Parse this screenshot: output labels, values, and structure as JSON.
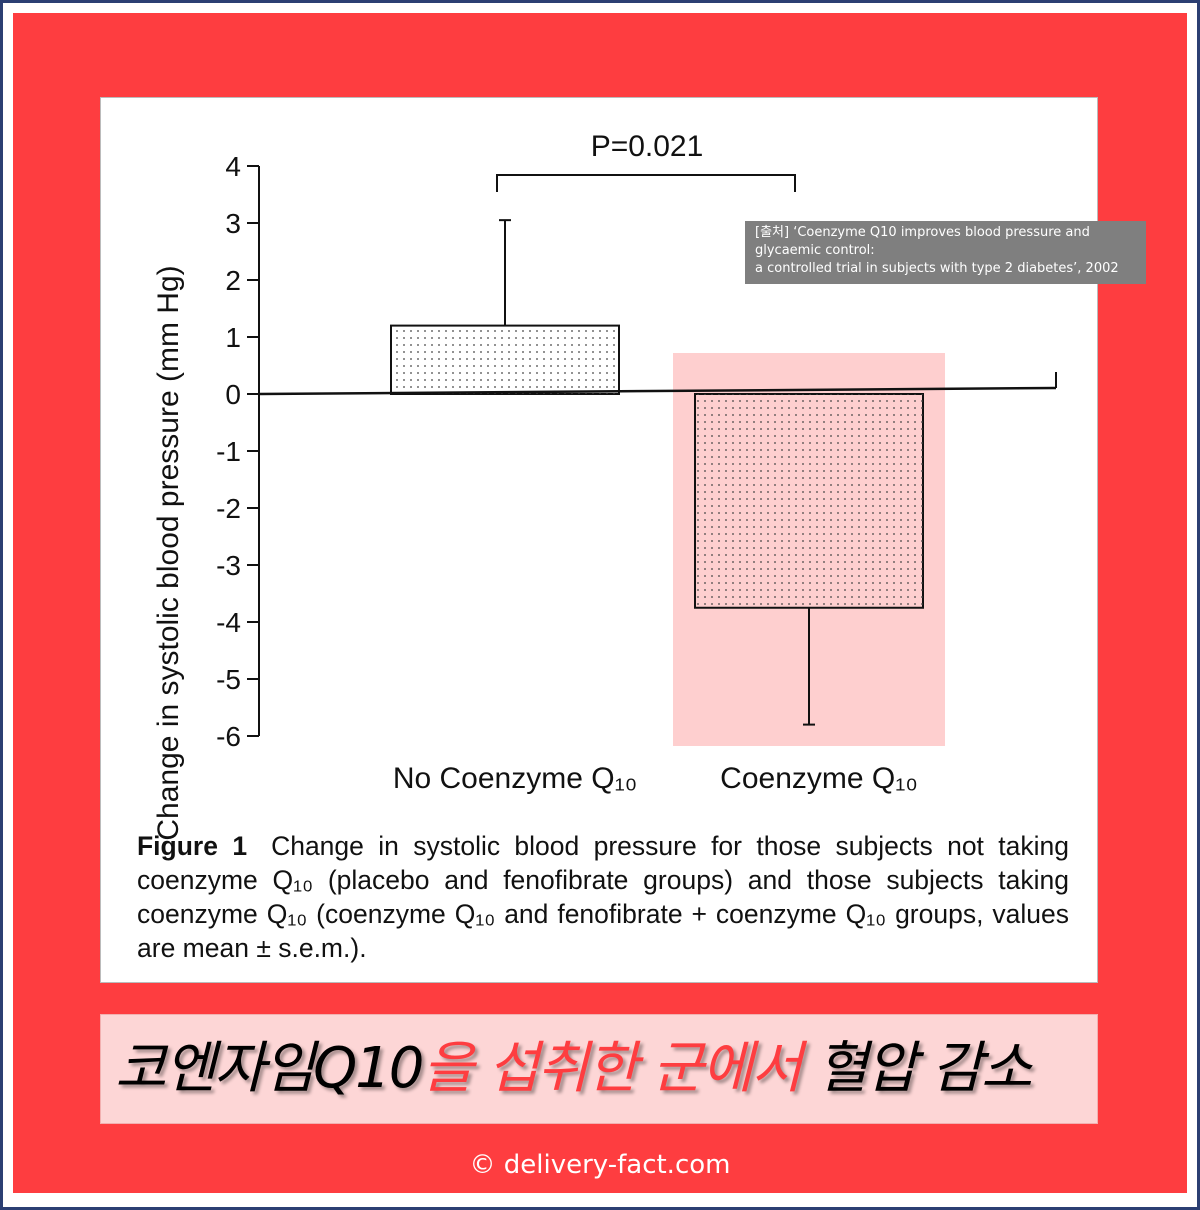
{
  "chart_data": {
    "type": "bar",
    "categories": [
      "No Coenzyme Q₁₀",
      "Coenzyme Q₁₀"
    ],
    "values": [
      1.2,
      -3.75
    ],
    "error_sem": [
      1.85,
      2.05
    ],
    "ylabel": "Change in systolic blood pressure (mm Hg)",
    "ylim": [
      -6,
      4
    ],
    "yticks": [
      4,
      3,
      2,
      1,
      0,
      -1,
      -2,
      -3,
      -4,
      -5,
      -6
    ],
    "annotation": "P=0.021",
    "highlighted_category": "Coenzyme Q₁₀",
    "grid": false,
    "colors": {
      "bar": "#ffffff",
      "highlight": "#fecfcf",
      "dots": "#444444"
    }
  },
  "source_note": {
    "line1": "[출처] ‘Coenzyme Q10 improves blood pressure and",
    "line2": "glycaemic control:",
    "line3": "a controlled trial in subjects with type 2 diabetes’, 2002"
  },
  "caption": {
    "label": "Figure 1",
    "text": "Change in systolic blood pressure for those subjects not taking coenzyme Q₁₀ (placebo and fenofibrate groups) and those subjects taking coenzyme Q₁₀ (coenzyme Q₁₀ and fenofibrate + coenzyme Q₁₀ groups, values are mean ± s.e.m.)."
  },
  "banner": {
    "part1": "코엔자임Q10",
    "part2": "을 섭취한 군에서",
    "part3": " 혈압 감소"
  },
  "credit": "© delivery-fact.com",
  "colors": {
    "frame_red": "#fe3d40",
    "border_navy": "#2b3f73",
    "banner_bg": "#fdd6d6"
  }
}
